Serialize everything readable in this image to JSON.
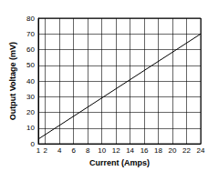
{
  "chart_data": {
    "type": "line",
    "x_label": "Current (Amps)",
    "y_label": "Output Voltage (mV)",
    "x": [
      1,
      24
    ],
    "values": [
      3,
      70
    ],
    "color": "#000000",
    "xlim": [
      1,
      24
    ],
    "xticks": [
      1,
      2,
      4,
      6,
      8,
      10,
      12,
      14,
      16,
      18,
      20,
      22,
      24
    ],
    "ylim": [
      0,
      80
    ],
    "yticks": [
      0,
      10,
      20,
      30,
      40,
      50,
      60,
      70,
      80
    ],
    "grid": true
  }
}
